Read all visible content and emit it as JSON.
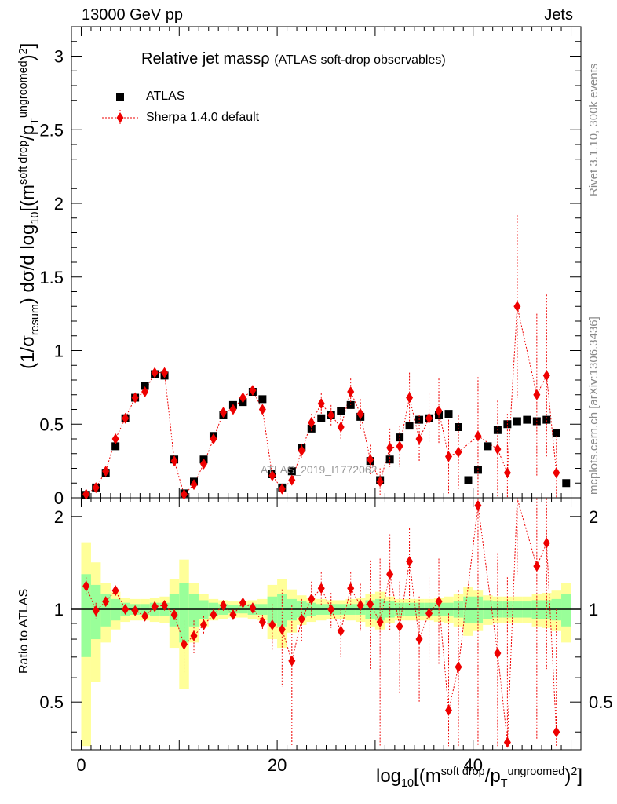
{
  "header": {
    "left": "13000 GeV pp",
    "right": "Jets"
  },
  "side_labels": {
    "rivet": "Rivet 3.1.10,  300k events",
    "mcplots": "mcplots.cern.ch [arXiv:1306.3436]"
  },
  "watermark": "ATLAS_2019_I1772062",
  "chart_data": {
    "type": "scatter",
    "title": "Relative jet massρ",
    "title_note": "(ATLAS soft-drop observables)",
    "xlabel": "log10[(m^soft drop/pT^ungroomed)^2]",
    "ylabel": "(1/σresum) dσ/d log10[(m^soft drop/pT^ungroomed)^2]",
    "ratio_ylabel": "Ratio to ATLAS",
    "xlim": [
      -1,
      51
    ],
    "ylim": [
      0,
      3.2
    ],
    "ratio_ylim": [
      0.35,
      2.3
    ],
    "x_ticks": [
      "0",
      "20",
      "40"
    ],
    "y_ticks": [
      "0",
      "0.5",
      "1",
      "1.5",
      "2",
      "2.5",
      "3"
    ],
    "ratio_y_ticks": [
      "0.5",
      "1",
      "2"
    ],
    "legend": [
      "ATLAS",
      "Sherpa 1.4.0 default"
    ],
    "x": [
      0.5,
      1.5,
      2.5,
      3.5,
      4.5,
      5.5,
      6.5,
      7.5,
      8.5,
      9.5,
      10.5,
      11.5,
      12.5,
      13.5,
      14.5,
      15.5,
      16.5,
      17.5,
      18.5,
      19.5,
      20.5,
      21.5,
      22.5,
      23.5,
      24.5,
      25.5,
      26.5,
      27.5,
      28.5,
      29.5,
      30.5,
      31.5,
      32.5,
      33.5,
      34.5,
      35.5,
      36.5,
      37.5,
      38.5,
      39.5,
      40.5,
      41.5,
      42.5,
      43.5,
      44.5,
      45.5,
      46.5,
      47.5,
      48.5,
      49.5
    ],
    "series": [
      {
        "name": "ATLAS",
        "values": [
          0.02,
          0.07,
          0.17,
          0.35,
          0.54,
          0.68,
          0.76,
          0.84,
          0.83,
          0.26,
          0.03,
          0.11,
          0.26,
          0.42,
          0.56,
          0.63,
          0.65,
          0.72,
          0.67,
          0.16,
          0.07,
          0.18,
          0.34,
          0.47,
          0.54,
          0.56,
          0.59,
          0.63,
          0.55,
          0.25,
          0.12,
          0.26,
          0.41,
          0.49,
          0.53,
          0.54,
          0.56,
          0.57,
          0.48,
          0.12,
          0.19,
          0.35,
          0.46,
          0.5,
          0.52,
          0.53,
          0.52,
          0.53,
          0.44,
          0.1
        ],
        "ratio_band_inner": [
          0.3,
          0.2,
          0.12,
          0.08,
          0.05,
          0.04,
          0.04,
          0.05,
          0.05,
          0.12,
          0.22,
          0.12,
          0.07,
          0.05,
          0.04,
          0.03,
          0.03,
          0.04,
          0.04,
          0.1,
          0.12,
          0.08,
          0.06,
          0.05,
          0.04,
          0.04,
          0.04,
          0.04,
          0.04,
          0.07,
          0.08,
          0.06,
          0.05,
          0.05,
          0.05,
          0.05,
          0.05,
          0.05,
          0.06,
          0.1,
          0.1,
          0.07,
          0.06,
          0.06,
          0.06,
          0.06,
          0.07,
          0.07,
          0.08,
          0.12
        ],
        "ratio_band_outer": [
          0.65,
          0.42,
          0.22,
          0.14,
          0.09,
          0.08,
          0.08,
          0.09,
          0.1,
          0.25,
          0.45,
          0.22,
          0.12,
          0.08,
          0.07,
          0.06,
          0.06,
          0.07,
          0.08,
          0.2,
          0.25,
          0.16,
          0.11,
          0.09,
          0.08,
          0.07,
          0.07,
          0.08,
          0.09,
          0.12,
          0.14,
          0.1,
          0.08,
          0.08,
          0.08,
          0.08,
          0.09,
          0.1,
          0.12,
          0.18,
          0.15,
          0.11,
          0.1,
          0.1,
          0.1,
          0.1,
          0.12,
          0.13,
          0.15,
          0.22
        ]
      },
      {
        "name": "Sherpa 1.4.0 default",
        "values": [
          0.024,
          0.069,
          0.18,
          0.4,
          0.54,
          0.68,
          0.72,
          0.85,
          0.85,
          0.25,
          0.023,
          0.09,
          0.23,
          0.4,
          0.58,
          0.6,
          0.68,
          0.73,
          0.6,
          0.15,
          0.06,
          0.12,
          0.32,
          0.51,
          0.64,
          0.56,
          0.48,
          0.72,
          0.57,
          0.26,
          0.11,
          0.34,
          0.35,
          0.68,
          0.4,
          0.54,
          0.59,
          0.28,
          0.31,
          null,
          0.42,
          null,
          0.33,
          0.17,
          1.3,
          null,
          0.7,
          0.83,
          0.17,
          null
        ],
        "errors": [
          0.004,
          0.004,
          0.005,
          0.008,
          0.01,
          0.01,
          0.01,
          0.01,
          0.012,
          0.012,
          0.01,
          0.01,
          0.01,
          0.012,
          0.015,
          0.015,
          0.02,
          0.025,
          0.03,
          0.03,
          0.03,
          0.035,
          0.045,
          0.06,
          0.07,
          0.07,
          0.08,
          0.09,
          0.1,
          0.1,
          0.09,
          0.13,
          0.14,
          0.17,
          0.16,
          0.17,
          0.22,
          0.25,
          0.25,
          null,
          0.4,
          null,
          0.33,
          0.4,
          0.62,
          null,
          0.55,
          0.55,
          0.25,
          null
        ],
        "ratio": [
          1.19,
          0.99,
          1.06,
          1.15,
          1.0,
          0.99,
          0.95,
          1.02,
          1.03,
          0.96,
          0.77,
          0.82,
          0.89,
          0.96,
          1.03,
          0.96,
          1.05,
          1.01,
          0.91,
          0.89,
          0.86,
          0.68,
          0.93,
          1.08,
          1.17,
          1.0,
          0.85,
          1.17,
          1.03,
          1.04,
          0.91,
          1.3,
          0.88,
          1.43,
          0.8,
          0.97,
          1.06,
          0.47,
          0.65,
          null,
          2.17,
          null,
          0.72,
          0.37,
          2.5,
          null,
          1.38,
          1.64,
          0.4,
          null
        ],
        "ratio_errors": [
          0.08,
          0.06,
          0.03,
          0.04,
          0.03,
          0.03,
          0.03,
          0.02,
          0.02,
          0.04,
          0.15,
          0.1,
          0.06,
          0.04,
          0.04,
          0.03,
          0.04,
          0.04,
          0.05,
          0.15,
          0.3,
          0.35,
          0.15,
          0.15,
          0.15,
          0.13,
          0.15,
          0.15,
          0.18,
          0.4,
          0.55,
          0.45,
          0.35,
          0.4,
          0.3,
          0.3,
          0.4,
          0.5,
          0.5,
          null,
          2.0,
          null,
          0.8,
          0.9,
          1.2,
          null,
          1.0,
          1.0,
          0.6,
          null
        ]
      }
    ]
  }
}
